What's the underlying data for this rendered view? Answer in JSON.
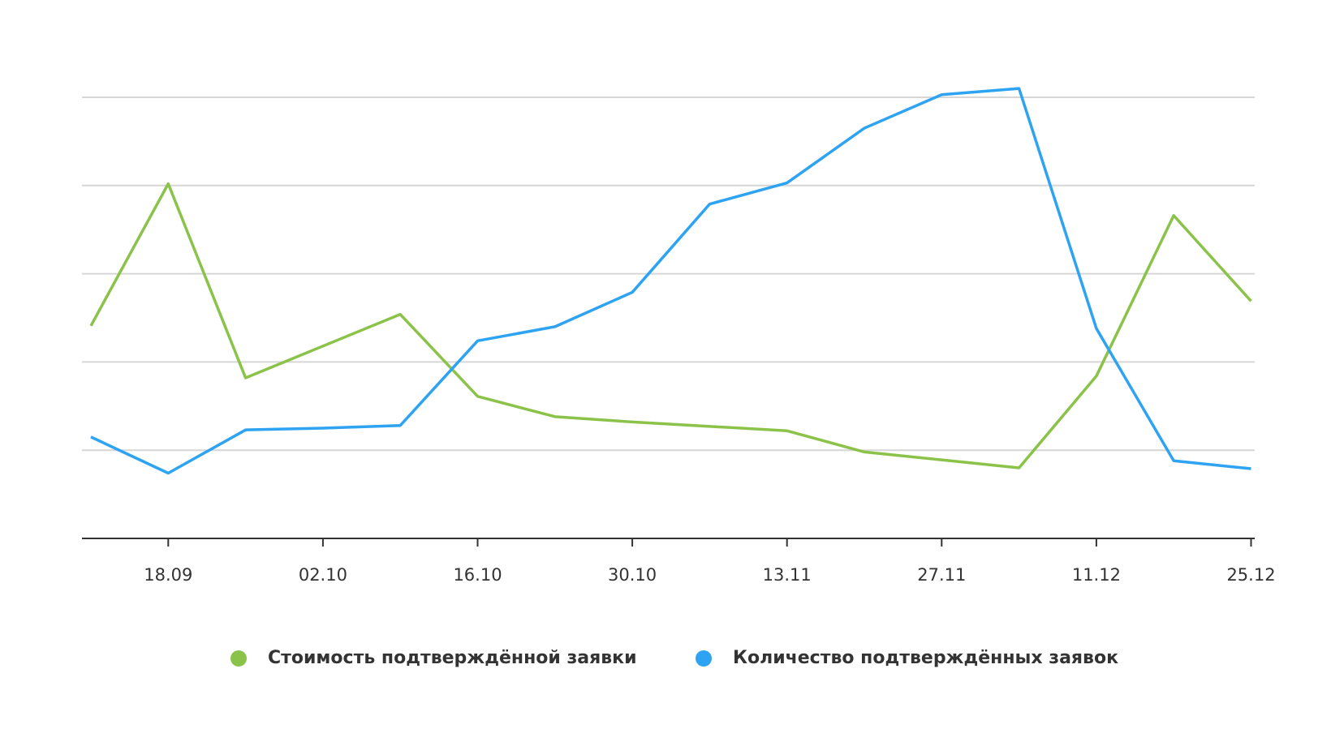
{
  "chart_data": {
    "type": "line",
    "categories": [
      null,
      "18.09",
      null,
      "02.10",
      null,
      "16.10",
      null,
      "30.10",
      null,
      "13.11",
      null,
      "27.11",
      null,
      "11.12",
      null,
      "25.12"
    ],
    "series": [
      {
        "name": "Стоимость подтверждённой заявки",
        "color": "#8bc34a",
        "values": [
          2.41,
          4.02,
          1.82,
          2.18,
          2.54,
          1.61,
          1.38,
          1.32,
          1.27,
          1.22,
          0.98,
          0.89,
          0.8,
          1.84,
          3.66,
          2.69
        ]
      },
      {
        "name": "Количество подтверждённых заявок",
        "color": "#2ea3f2",
        "values": [
          1.15,
          0.74,
          1.23,
          1.25,
          1.28,
          2.24,
          2.4,
          2.79,
          3.79,
          4.03,
          4.65,
          5.03,
          5.1,
          2.38,
          0.88,
          0.79
        ]
      }
    ],
    "ylim": [
      0,
      5.5
    ],
    "yticks": [
      1,
      2,
      3,
      4,
      5
    ],
    "grid": true
  }
}
